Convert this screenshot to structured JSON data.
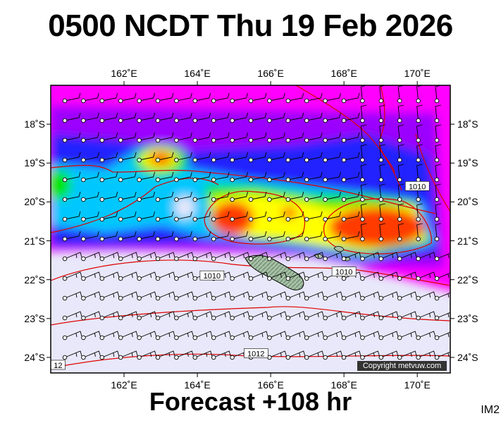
{
  "title": "0500 NCDT Thu 19 Feb 2026",
  "subtitle": "Forecast +108 hr",
  "image_code": "IM2",
  "copyright": "Copyright metvuw.com",
  "map": {
    "lon_ticks": [
      {
        "value": 162,
        "label": "162˚E"
      },
      {
        "value": 164,
        "label": "164˚E"
      },
      {
        "value": 166,
        "label": "166˚E"
      },
      {
        "value": 168,
        "label": "168˚E"
      },
      {
        "value": 170,
        "label": "170˚E"
      }
    ],
    "lat_ticks": [
      {
        "value": -18,
        "label": "18˚S"
      },
      {
        "value": -19,
        "label": "19˚S"
      },
      {
        "value": -20,
        "label": "20˚S"
      },
      {
        "value": -21,
        "label": "21˚S"
      },
      {
        "value": -22,
        "label": "22˚S"
      },
      {
        "value": -23,
        "label": "23˚S"
      },
      {
        "value": -24,
        "label": "24˚S"
      }
    ],
    "lon_range": [
      160.0,
      170.9
    ],
    "lat_range": [
      -24.4,
      -17.0
    ],
    "isobar_labels": [
      {
        "text": "1010",
        "lon": 170.0,
        "lat": -19.6
      },
      {
        "text": "1010",
        "lon": 164.4,
        "lat": -21.9
      },
      {
        "text": "1010",
        "lon": 168.0,
        "lat": -21.8
      },
      {
        "text": "1012",
        "lon": 165.6,
        "lat": -23.9
      },
      {
        "text": "12",
        "lon": 160.2,
        "lat": -24.2
      }
    ],
    "colors": {
      "ocean_calm": "#e8e8fa",
      "magenta": "#ff00ff",
      "purple": "#9900ff",
      "blue": "#1e1eff",
      "cyan": "#00c8ff",
      "green": "#00e600",
      "yellow": "#ffff00",
      "red": "#ff4000",
      "isobar": "#e00000",
      "land": "#a8c0a8"
    }
  }
}
